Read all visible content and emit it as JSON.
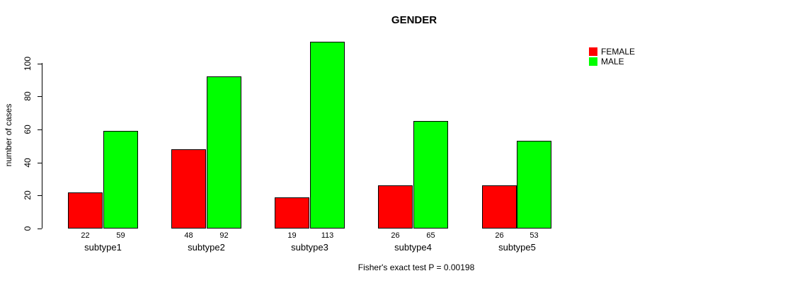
{
  "title": "GENDER",
  "ylabel": "number of cases",
  "footer": "Fisher's exact test P = 0.00198",
  "legend": [
    {
      "label": "FEMALE",
      "color": "#ff0000"
    },
    {
      "label": "MALE",
      "color": "#00ff00"
    }
  ],
  "chart_data": {
    "type": "bar",
    "grouped": true,
    "title": "GENDER",
    "xlabel": "",
    "ylabel": "number of cases",
    "categories": [
      "subtype1",
      "subtype2",
      "subtype3",
      "subtype4",
      "subtype5"
    ],
    "series": [
      {
        "name": "FEMALE",
        "color": "#ff0000",
        "values": [
          22,
          48,
          19,
          26,
          26
        ]
      },
      {
        "name": "MALE",
        "color": "#00ff00",
        "values": [
          59,
          92,
          113,
          65,
          53
        ]
      }
    ],
    "yticks": [
      0,
      20,
      40,
      60,
      80,
      100
    ],
    "ylim": [
      0,
      113
    ],
    "grid": false,
    "bar_value_labels": true,
    "legend_position": "top-right",
    "annotation": "Fisher's exact test P = 0.00198"
  }
}
